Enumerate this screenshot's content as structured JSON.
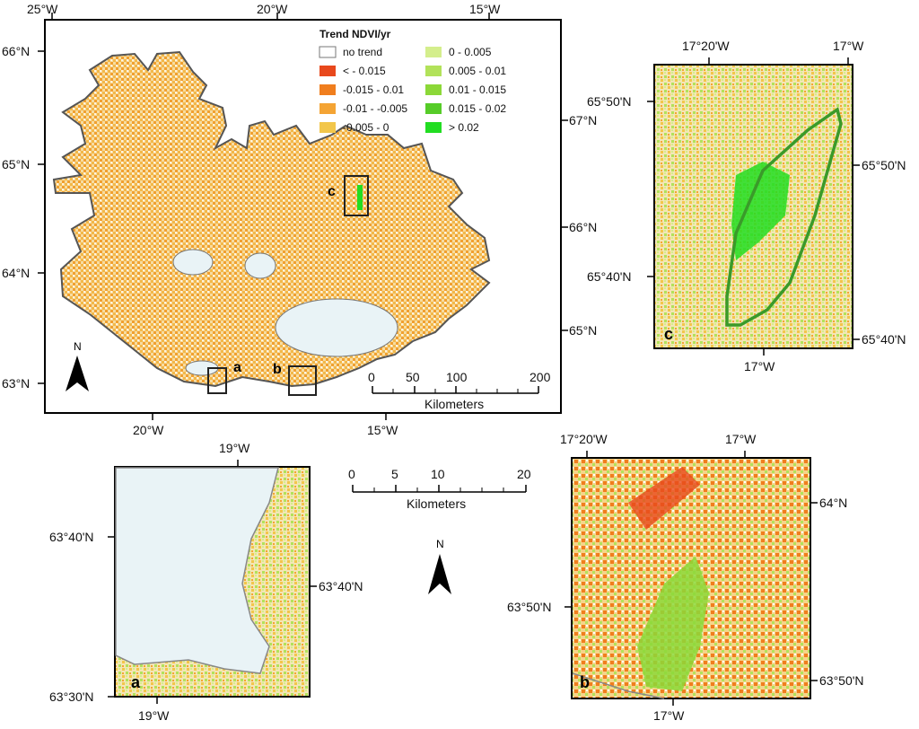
{
  "main_map": {
    "top_lon": [
      "25°W",
      "20°W",
      "15°W"
    ],
    "bottom_lon": [
      "20°W",
      "15°W"
    ],
    "left_lat": [
      "66°N",
      "65°N",
      "64°N",
      "63°N"
    ],
    "right_lat": [
      "67°N",
      "66°N",
      "65°N"
    ],
    "legend": {
      "title": "Trend NDVI/yr",
      "items": [
        {
          "label": "no trend",
          "color": "#ffffff"
        },
        {
          "label": "< - 0.015",
          "color": "#e8481c"
        },
        {
          "label": "-0.015 - 0.01",
          "color": "#f07e1e"
        },
        {
          "label": "-0.01 - -0.005",
          "color": "#f4a434"
        },
        {
          "label": "-0.005 - 0",
          "color": "#f2c64a"
        },
        {
          "label": "0 - 0.005",
          "color": "#d4ee8c"
        },
        {
          "label": "0.005 - 0.01",
          "color": "#b2e25a"
        },
        {
          "label": "0.01 - 0.015",
          "color": "#8cd838"
        },
        {
          "label": "0.015 - 0.02",
          "color": "#56cc28"
        },
        {
          "label": "> 0.02",
          "color": "#22dd22"
        }
      ]
    },
    "scale_ticks": [
      "0",
      "50",
      "100",
      "200"
    ],
    "scale_unit": "Kilometers",
    "north": "N",
    "inset_labels": [
      "a",
      "b",
      "c"
    ]
  },
  "panel_c": {
    "letter": "c",
    "top_lon": [
      "17°20'W",
      "17°W"
    ],
    "bottom_lon": [
      "17°W"
    ],
    "left_lat": [
      "65°50'N",
      "65°40'N"
    ],
    "right_lat": [
      "65°50'N",
      "65°40'N"
    ]
  },
  "panel_a": {
    "letter": "a",
    "top_lon": [
      "19°W"
    ],
    "bottom_lon": [
      "19°W"
    ],
    "left_lat": [
      "63°40'N",
      "63°30'N"
    ],
    "right_lat": [
      "63°40'N"
    ]
  },
  "panel_b": {
    "letter": "b",
    "top_lon": [
      "17°20'W",
      "17°W"
    ],
    "bottom_lon": [
      "17°W"
    ],
    "left_lat": [
      "63°50'N"
    ],
    "right_lat": [
      "64°N",
      "63°50'N"
    ]
  },
  "small_scale": {
    "ticks": [
      "0",
      "5",
      "10",
      "20"
    ],
    "unit": "Kilometers"
  },
  "small_north": "N"
}
